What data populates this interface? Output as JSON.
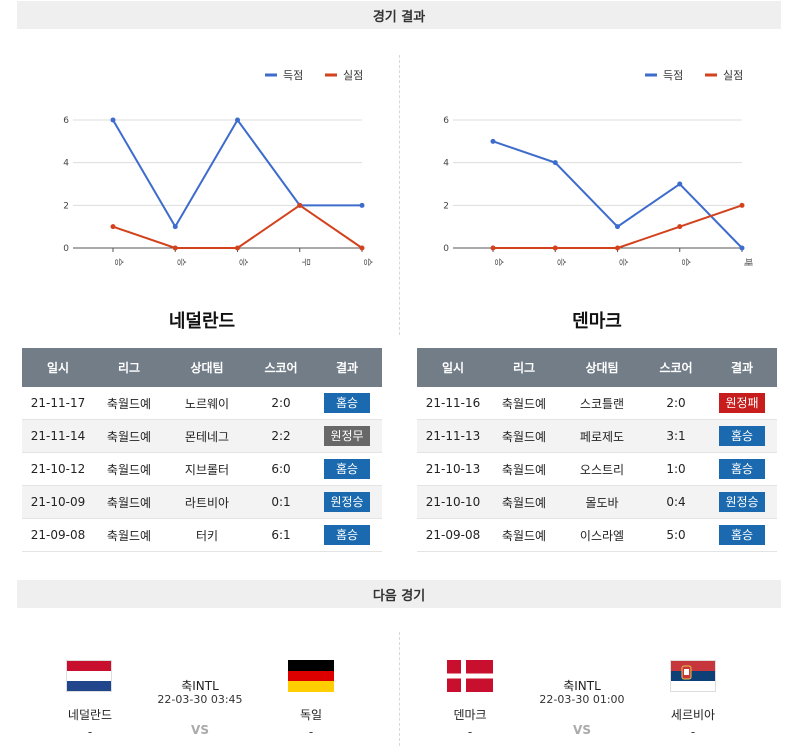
{
  "headers": {
    "results": "경기 결과",
    "next": "다음 경기"
  },
  "teams": [
    {
      "name": "네덜란드",
      "columns": [
        "일시",
        "리그",
        "상대팀",
        "스코어",
        "결과"
      ],
      "rows": [
        {
          "date": "21-11-17",
          "league": "축월드예",
          "opponent": "노르웨이",
          "score": "2:0",
          "result": "홈승",
          "type": "home-win"
        },
        {
          "date": "21-11-14",
          "league": "축월드예",
          "opponent": "몬테네그",
          "score": "2:2",
          "result": "원정무",
          "type": "away-draw"
        },
        {
          "date": "21-10-12",
          "league": "축월드예",
          "opponent": "지브롤터",
          "score": "6:0",
          "result": "홈승",
          "type": "home-win"
        },
        {
          "date": "21-10-09",
          "league": "축월드예",
          "opponent": "라트비아",
          "score": "0:1",
          "result": "원정승",
          "type": "away-win"
        },
        {
          "date": "21-09-08",
          "league": "축월드예",
          "opponent": "터키",
          "score": "6:1",
          "result": "홈승",
          "type": "home-win"
        }
      ]
    },
    {
      "name": "덴마크",
      "columns": [
        "일시",
        "리그",
        "상대팀",
        "스코어",
        "결과"
      ],
      "rows": [
        {
          "date": "21-11-16",
          "league": "축월드예",
          "opponent": "스코틀랜",
          "score": "2:0",
          "result": "원정패",
          "type": "away-loss"
        },
        {
          "date": "21-11-13",
          "league": "축월드예",
          "opponent": "페로제도",
          "score": "3:1",
          "result": "홈승",
          "type": "home-win"
        },
        {
          "date": "21-10-13",
          "league": "축월드예",
          "opponent": "오스트리",
          "score": "1:0",
          "result": "홈승",
          "type": "home-win"
        },
        {
          "date": "21-10-10",
          "league": "축월드예",
          "opponent": "몰도바",
          "score": "0:4",
          "result": "원정승",
          "type": "away-win"
        },
        {
          "date": "21-09-08",
          "league": "축월드예",
          "opponent": "이스라엘",
          "score": "5:0",
          "result": "홈승",
          "type": "home-win"
        }
      ]
    }
  ],
  "chart_data": [
    {
      "type": "line",
      "categories": [
        "승",
        "승",
        "승",
        "무",
        "승"
      ],
      "series": [
        {
          "name": "득점",
          "values": [
            6,
            1,
            6,
            2,
            2
          ],
          "color": "#3d6ccc"
        },
        {
          "name": "실점",
          "values": [
            1,
            0,
            0,
            2,
            0
          ],
          "color": "#d2421c"
        }
      ],
      "ylim": [
        0,
        6
      ],
      "yticks": [
        0,
        2,
        4,
        6
      ],
      "legend": "top-right",
      "grid": true
    },
    {
      "type": "line",
      "categories": [
        "승",
        "승",
        "승",
        "승",
        "패"
      ],
      "series": [
        {
          "name": "득점",
          "values": [
            5,
            4,
            1,
            3,
            0
          ],
          "color": "#3d6ccc"
        },
        {
          "name": "실점",
          "values": [
            0,
            0,
            0,
            1,
            2
          ],
          "color": "#d2421c"
        }
      ],
      "ylim": [
        0,
        6
      ],
      "yticks": [
        0,
        2,
        4,
        6
      ],
      "legend": "top-right",
      "grid": true
    }
  ],
  "next_matches": [
    {
      "home": "네덜란드",
      "home_score": "-",
      "away": "독일",
      "away_score": "-",
      "league": "축INTL",
      "datetime": "22-03-30 03:45",
      "vs": "VS"
    },
    {
      "home": "덴마크",
      "home_score": "-",
      "away": "세르비아",
      "away_score": "-",
      "league": "축INTL",
      "datetime": "22-03-30 01:00",
      "vs": "VS"
    }
  ],
  "colors": {
    "home_win": "#1b6ab0",
    "away_win": "#1b6ab0",
    "draw": "#686868",
    "loss": "#c81d1d",
    "header_bg": "#727d88"
  }
}
